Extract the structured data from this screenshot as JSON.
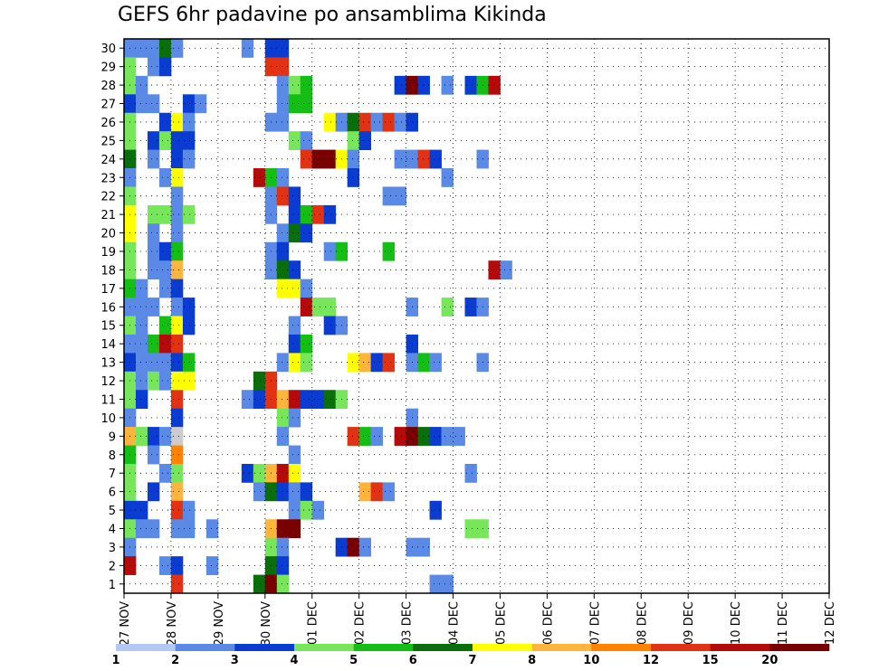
{
  "chart_data": {
    "type": "heatmap",
    "title": "GEFS 6hr padavine po ansamblima Kikinda",
    "y_tick_labels": [
      "1",
      "2",
      "3",
      "4",
      "5",
      "6",
      "7",
      "8",
      "9",
      "10",
      "11",
      "12",
      "13",
      "14",
      "15",
      "16",
      "17",
      "18",
      "19",
      "20",
      "21",
      "22",
      "23",
      "24",
      "25",
      "26",
      "27",
      "28",
      "29",
      "30"
    ],
    "x_tick_labels": [
      "27 NOV",
      "28 NOV",
      "29 NOV",
      "30 NOV",
      "01 DEC",
      "02 DEC",
      "03 DEC",
      "04 DEC",
      "05 DEC",
      "06 DEC",
      "07 DEC",
      "08 DEC",
      "09 DEC",
      "10 DEC",
      "11 DEC",
      "12 DEC"
    ],
    "x_steps_per_day": 4,
    "x_range_steps": [
      0,
      60
    ],
    "y_range_members": [
      0,
      30
    ],
    "grid": true,
    "color_bar": {
      "labels": [
        "1",
        "2",
        "3",
        "4",
        "5",
        "6",
        "7",
        "8",
        "10",
        "12",
        "15",
        "20"
      ],
      "colors": [
        "#b4c8f5",
        "#5a8ae6",
        "#0a3cd2",
        "#78e65a",
        "#14be14",
        "#0a6e0a",
        "#ffff00",
        "#ffb43c",
        "#ff8200",
        "#e13214",
        "#b40a0a",
        "#780000"
      ]
    },
    "cells": [
      [
        30,
        0,
        1
      ],
      [
        30,
        1,
        1
      ],
      [
        30,
        2,
        1
      ],
      [
        30,
        3,
        5
      ],
      [
        30,
        4,
        1
      ],
      [
        30,
        10,
        1
      ],
      [
        30,
        12,
        2
      ],
      [
        30,
        13,
        2
      ],
      [
        29,
        0,
        3
      ],
      [
        29,
        2,
        1
      ],
      [
        29,
        3,
        2
      ],
      [
        29,
        12,
        9
      ],
      [
        29,
        13,
        9
      ],
      [
        28,
        0,
        3
      ],
      [
        28,
        1,
        1
      ],
      [
        28,
        13,
        1
      ],
      [
        28,
        14,
        3
      ],
      [
        28,
        15,
        4
      ],
      [
        28,
        23,
        2
      ],
      [
        28,
        24,
        11
      ],
      [
        28,
        25,
        2
      ],
      [
        28,
        27,
        1
      ],
      [
        28,
        29,
        2
      ],
      [
        28,
        30,
        4
      ],
      [
        28,
        31,
        10
      ],
      [
        27,
        0,
        2
      ],
      [
        27,
        1,
        1
      ],
      [
        27,
        2,
        1
      ],
      [
        27,
        5,
        2
      ],
      [
        27,
        6,
        1
      ],
      [
        27,
        13,
        1
      ],
      [
        27,
        14,
        4
      ],
      [
        27,
        15,
        4
      ],
      [
        26,
        0,
        3
      ],
      [
        26,
        3,
        2
      ],
      [
        26,
        4,
        6
      ],
      [
        26,
        5,
        1
      ],
      [
        26,
        12,
        1
      ],
      [
        26,
        13,
        1
      ],
      [
        26,
        17,
        6
      ],
      [
        26,
        18,
        1
      ],
      [
        26,
        19,
        5
      ],
      [
        26,
        20,
        9
      ],
      [
        26,
        21,
        1
      ],
      [
        26,
        22,
        9
      ],
      [
        26,
        23,
        1
      ],
      [
        26,
        24,
        2
      ],
      [
        25,
        0,
        3
      ],
      [
        25,
        2,
        2
      ],
      [
        25,
        3,
        3
      ],
      [
        25,
        4,
        2
      ],
      [
        25,
        5,
        2
      ],
      [
        25,
        14,
        3
      ],
      [
        25,
        15,
        1
      ],
      [
        25,
        19,
        3
      ],
      [
        25,
        20,
        2
      ],
      [
        24,
        0,
        5
      ],
      [
        24,
        2,
        1
      ],
      [
        24,
        4,
        2
      ],
      [
        24,
        5,
        1
      ],
      [
        24,
        15,
        9
      ],
      [
        24,
        16,
        11
      ],
      [
        24,
        17,
        11
      ],
      [
        24,
        18,
        6
      ],
      [
        24,
        19,
        1
      ],
      [
        24,
        23,
        1
      ],
      [
        24,
        24,
        1
      ],
      [
        24,
        25,
        9
      ],
      [
        24,
        26,
        2
      ],
      [
        24,
        30,
        1
      ],
      [
        23,
        0,
        1
      ],
      [
        23,
        3,
        1
      ],
      [
        23,
        4,
        6
      ],
      [
        23,
        11,
        10
      ],
      [
        23,
        12,
        4
      ],
      [
        23,
        13,
        1
      ],
      [
        23,
        19,
        2
      ],
      [
        23,
        27,
        1
      ],
      [
        22,
        0,
        3
      ],
      [
        22,
        4,
        1
      ],
      [
        22,
        12,
        1
      ],
      [
        22,
        13,
        9
      ],
      [
        22,
        14,
        2
      ],
      [
        22,
        22,
        1
      ],
      [
        22,
        23,
        1
      ],
      [
        21,
        0,
        6
      ],
      [
        21,
        2,
        3
      ],
      [
        21,
        3,
        3
      ],
      [
        21,
        4,
        1
      ],
      [
        21,
        5,
        3
      ],
      [
        21,
        12,
        1
      ],
      [
        21,
        14,
        2
      ],
      [
        21,
        15,
        4
      ],
      [
        21,
        16,
        9
      ],
      [
        21,
        17,
        2
      ],
      [
        20,
        0,
        6
      ],
      [
        20,
        2,
        1
      ],
      [
        20,
        4,
        1
      ],
      [
        20,
        13,
        1
      ],
      [
        20,
        14,
        5
      ],
      [
        20,
        15,
        2
      ],
      [
        19,
        0,
        3
      ],
      [
        19,
        2,
        1
      ],
      [
        19,
        3,
        2
      ],
      [
        19,
        4,
        4
      ],
      [
        19,
        12,
        1
      ],
      [
        19,
        13,
        2
      ],
      [
        19,
        17,
        1
      ],
      [
        19,
        18,
        4
      ],
      [
        19,
        22,
        4
      ],
      [
        18,
        0,
        3
      ],
      [
        18,
        2,
        1
      ],
      [
        18,
        3,
        1
      ],
      [
        18,
        4,
        7
      ],
      [
        18,
        12,
        1
      ],
      [
        18,
        13,
        5
      ],
      [
        18,
        14,
        2
      ],
      [
        18,
        31,
        10
      ],
      [
        18,
        32,
        1
      ],
      [
        17,
        0,
        4
      ],
      [
        17,
        1,
        1
      ],
      [
        17,
        3,
        1
      ],
      [
        17,
        4,
        2
      ],
      [
        17,
        13,
        6
      ],
      [
        17,
        14,
        6
      ],
      [
        17,
        15,
        1
      ],
      [
        16,
        0,
        1
      ],
      [
        16,
        1,
        1
      ],
      [
        16,
        2,
        1
      ],
      [
        16,
        4,
        1
      ],
      [
        16,
        5,
        2
      ],
      [
        16,
        15,
        10
      ],
      [
        16,
        16,
        3
      ],
      [
        16,
        17,
        3
      ],
      [
        16,
        24,
        1
      ],
      [
        16,
        27,
        3
      ],
      [
        16,
        29,
        2
      ],
      [
        16,
        30,
        1
      ],
      [
        15,
        0,
        3
      ],
      [
        15,
        1,
        1
      ],
      [
        15,
        3,
        4
      ],
      [
        15,
        4,
        6
      ],
      [
        15,
        5,
        2
      ],
      [
        15,
        14,
        1
      ],
      [
        15,
        17,
        2
      ],
      [
        15,
        18,
        1
      ],
      [
        14,
        0,
        1
      ],
      [
        14,
        1,
        1
      ],
      [
        14,
        2,
        4
      ],
      [
        14,
        3,
        10
      ],
      [
        14,
        4,
        9
      ],
      [
        14,
        14,
        2
      ],
      [
        14,
        15,
        4
      ],
      [
        14,
        24,
        2
      ],
      [
        13,
        0,
        2
      ],
      [
        13,
        1,
        1
      ],
      [
        13,
        2,
        1
      ],
      [
        13,
        3,
        1
      ],
      [
        13,
        4,
        2
      ],
      [
        13,
        5,
        4
      ],
      [
        13,
        13,
        1
      ],
      [
        13,
        14,
        6
      ],
      [
        13,
        15,
        3
      ],
      [
        13,
        19,
        6
      ],
      [
        13,
        20,
        7
      ],
      [
        13,
        21,
        2
      ],
      [
        13,
        22,
        9
      ],
      [
        13,
        24,
        1
      ],
      [
        13,
        25,
        4
      ],
      [
        13,
        26,
        1
      ],
      [
        13,
        30,
        1
      ],
      [
        12,
        0,
        3
      ],
      [
        12,
        1,
        1
      ],
      [
        12,
        2,
        3
      ],
      [
        12,
        3,
        1
      ],
      [
        12,
        4,
        6
      ],
      [
        12,
        5,
        6
      ],
      [
        12,
        11,
        5
      ],
      [
        12,
        12,
        9
      ],
      [
        11,
        0,
        3
      ],
      [
        11,
        1,
        2
      ],
      [
        11,
        4,
        9
      ],
      [
        11,
        10,
        1
      ],
      [
        11,
        11,
        2
      ],
      [
        11,
        12,
        9
      ],
      [
        11,
        13,
        7
      ],
      [
        11,
        14,
        10
      ],
      [
        11,
        15,
        2
      ],
      [
        11,
        16,
        2
      ],
      [
        11,
        17,
        5
      ],
      [
        11,
        18,
        3
      ],
      [
        10,
        0,
        1
      ],
      [
        10,
        4,
        2
      ],
      [
        10,
        13,
        3
      ],
      [
        10,
        14,
        1
      ],
      [
        10,
        24,
        1
      ],
      [
        9,
        0,
        7
      ],
      [
        9,
        1,
        3
      ],
      [
        9,
        2,
        2
      ],
      [
        9,
        3,
        1
      ],
      [
        9,
        4,
        12
      ],
      [
        9,
        13,
        1
      ],
      [
        9,
        19,
        9
      ],
      [
        9,
        20,
        4
      ],
      [
        9,
        21,
        1
      ],
      [
        9,
        23,
        10
      ],
      [
        9,
        24,
        11
      ],
      [
        9,
        25,
        5
      ],
      [
        9,
        26,
        2
      ],
      [
        9,
        27,
        1
      ],
      [
        9,
        28,
        1
      ],
      [
        8,
        0,
        4
      ],
      [
        8,
        2,
        1
      ],
      [
        8,
        4,
        8
      ],
      [
        8,
        14,
        1
      ],
      [
        7,
        0,
        3
      ],
      [
        7,
        3,
        1
      ],
      [
        7,
        4,
        3
      ],
      [
        7,
        10,
        2
      ],
      [
        7,
        11,
        3
      ],
      [
        7,
        12,
        7
      ],
      [
        7,
        13,
        10
      ],
      [
        7,
        14,
        6
      ],
      [
        7,
        29,
        1
      ],
      [
        6,
        0,
        3
      ],
      [
        6,
        2,
        2
      ],
      [
        6,
        4,
        7
      ],
      [
        6,
        11,
        1
      ],
      [
        6,
        12,
        5
      ],
      [
        6,
        13,
        2
      ],
      [
        6,
        14,
        1
      ],
      [
        6,
        15,
        2
      ],
      [
        6,
        20,
        7
      ],
      [
        6,
        21,
        9
      ],
      [
        6,
        22,
        1
      ],
      [
        5,
        0,
        2
      ],
      [
        5,
        1,
        2
      ],
      [
        5,
        4,
        9
      ],
      [
        5,
        5,
        1
      ],
      [
        5,
        14,
        1
      ],
      [
        5,
        15,
        3
      ],
      [
        5,
        16,
        1
      ],
      [
        5,
        26,
        2
      ],
      [
        4,
        0,
        3
      ],
      [
        4,
        1,
        1
      ],
      [
        4,
        2,
        1
      ],
      [
        4,
        4,
        1
      ],
      [
        4,
        5,
        1
      ],
      [
        4,
        7,
        1
      ],
      [
        4,
        12,
        7
      ],
      [
        4,
        13,
        11
      ],
      [
        4,
        14,
        11
      ],
      [
        4,
        29,
        3
      ],
      [
        4,
        30,
        3
      ],
      [
        3,
        0,
        1
      ],
      [
        3,
        12,
        3
      ],
      [
        3,
        13,
        1
      ],
      [
        3,
        18,
        2
      ],
      [
        3,
        19,
        11
      ],
      [
        3,
        20,
        1
      ],
      [
        3,
        24,
        1
      ],
      [
        3,
        25,
        1
      ],
      [
        2,
        0,
        10
      ],
      [
        2,
        3,
        1
      ],
      [
        2,
        4,
        2
      ],
      [
        2,
        7,
        1
      ],
      [
        2,
        12,
        5
      ],
      [
        2,
        13,
        2
      ],
      [
        1,
        4,
        9
      ],
      [
        1,
        11,
        5
      ],
      [
        1,
        12,
        11
      ],
      [
        1,
        13,
        3
      ],
      [
        1,
        26,
        1
      ],
      [
        1,
        27,
        1
      ]
    ]
  }
}
